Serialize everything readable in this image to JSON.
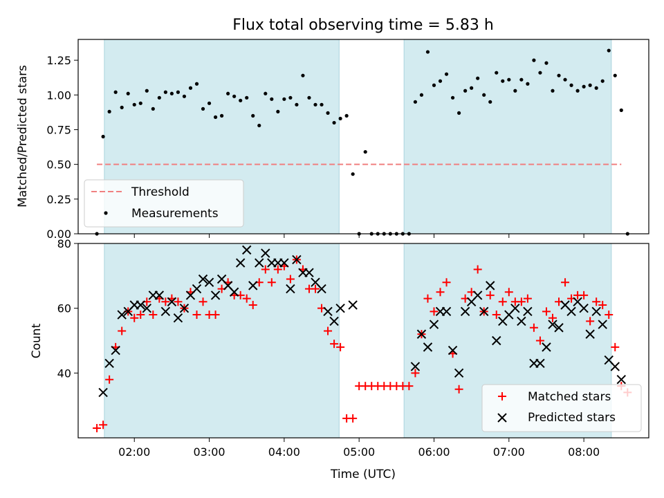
{
  "chart_data": [
    {
      "type": "scatter",
      "title": "Flux total observing time = 5.83 h",
      "xlabel": "",
      "ylabel": "Matched/Predicted stars",
      "xlim": [
        "01:15",
        "08:52"
      ],
      "ylim": [
        0,
        1.4
      ],
      "yticks": [
        "0.00",
        "0.25",
        "0.50",
        "0.75",
        "1.00",
        "1.25"
      ],
      "shaded_regions": [
        [
          "01:36",
          "04:44"
        ],
        [
          "05:36",
          "08:22"
        ]
      ],
      "legend": {
        "placement": "lower-left",
        "entries": [
          "Threshold",
          "Measurements"
        ]
      },
      "threshold": {
        "name": "Threshold",
        "value": 0.5,
        "x_range": [
          "01:30",
          "08:30"
        ],
        "color": "#f08080"
      },
      "series": [
        {
          "name": "Measurements",
          "color": "#000000",
          "points": [
            [
              "01:30",
              0.0
            ],
            [
              "01:35",
              0.7
            ],
            [
              "01:40",
              0.88
            ],
            [
              "01:45",
              1.02
            ],
            [
              "01:50",
              0.91
            ],
            [
              "01:55",
              1.01
            ],
            [
              "02:00",
              0.93
            ],
            [
              "02:05",
              0.94
            ],
            [
              "02:10",
              1.03
            ],
            [
              "02:15",
              0.9
            ],
            [
              "02:20",
              0.98
            ],
            [
              "02:25",
              1.02
            ],
            [
              "02:30",
              1.01
            ],
            [
              "02:35",
              1.02
            ],
            [
              "02:40",
              0.99
            ],
            [
              "02:45",
              1.05
            ],
            [
              "02:50",
              1.08
            ],
            [
              "02:55",
              0.9
            ],
            [
              "03:00",
              0.94
            ],
            [
              "03:05",
              0.84
            ],
            [
              "03:10",
              0.85
            ],
            [
              "03:15",
              1.01
            ],
            [
              "03:20",
              0.99
            ],
            [
              "03:25",
              0.96
            ],
            [
              "03:30",
              0.98
            ],
            [
              "03:35",
              0.85
            ],
            [
              "03:40",
              0.78
            ],
            [
              "03:45",
              1.01
            ],
            [
              "03:50",
              0.97
            ],
            [
              "03:55",
              0.88
            ],
            [
              "04:00",
              0.97
            ],
            [
              "04:05",
              0.98
            ],
            [
              "04:10",
              0.93
            ],
            [
              "04:15",
              1.14
            ],
            [
              "04:20",
              0.98
            ],
            [
              "04:25",
              0.93
            ],
            [
              "04:30",
              0.93
            ],
            [
              "04:35",
              0.87
            ],
            [
              "04:40",
              0.8
            ],
            [
              "04:45",
              0.83
            ],
            [
              "04:50",
              0.85
            ],
            [
              "04:55",
              0.43
            ],
            [
              "05:00",
              0.0
            ],
            [
              "05:05",
              0.59
            ],
            [
              "05:10",
              0.0
            ],
            [
              "05:15",
              0.0
            ],
            [
              "05:20",
              0.0
            ],
            [
              "05:25",
              0.0
            ],
            [
              "05:30",
              0.0
            ],
            [
              "05:35",
              0.0
            ],
            [
              "05:40",
              0.0
            ],
            [
              "05:45",
              0.95
            ],
            [
              "05:50",
              1.0
            ],
            [
              "05:55",
              1.31
            ],
            [
              "06:00",
              1.07
            ],
            [
              "06:05",
              1.1
            ],
            [
              "06:10",
              1.15
            ],
            [
              "06:15",
              0.98
            ],
            [
              "06:20",
              0.87
            ],
            [
              "06:25",
              1.03
            ],
            [
              "06:30",
              1.05
            ],
            [
              "06:35",
              1.12
            ],
            [
              "06:40",
              1.0
            ],
            [
              "06:45",
              0.95
            ],
            [
              "06:50",
              1.16
            ],
            [
              "06:55",
              1.1
            ],
            [
              "07:00",
              1.11
            ],
            [
              "07:05",
              1.03
            ],
            [
              "07:10",
              1.11
            ],
            [
              "07:15",
              1.08
            ],
            [
              "07:20",
              1.25
            ],
            [
              "07:25",
              1.16
            ],
            [
              "07:30",
              1.23
            ],
            [
              "07:35",
              1.03
            ],
            [
              "07:40",
              1.14
            ],
            [
              "07:45",
              1.11
            ],
            [
              "07:50",
              1.07
            ],
            [
              "07:55",
              1.03
            ],
            [
              "08:00",
              1.06
            ],
            [
              "08:05",
              1.07
            ],
            [
              "08:10",
              1.05
            ],
            [
              "08:15",
              1.1
            ],
            [
              "08:20",
              1.32
            ],
            [
              "08:25",
              1.14
            ],
            [
              "08:30",
              0.89
            ],
            [
              "08:35",
              0.0
            ]
          ]
        }
      ]
    },
    {
      "type": "scatter",
      "title": "",
      "xlabel": "Time (UTC)",
      "ylabel": "Count",
      "xlim": [
        "01:15",
        "08:52"
      ],
      "ylim": [
        20,
        80
      ],
      "yticks": [
        "40",
        "60",
        "80"
      ],
      "xticks": [
        "02:00",
        "03:00",
        "04:00",
        "05:00",
        "06:00",
        "07:00",
        "08:00"
      ],
      "shaded_regions": [
        [
          "01:36",
          "04:44"
        ],
        [
          "05:36",
          "08:22"
        ]
      ],
      "legend": {
        "placement": "lower-right",
        "entries": [
          "Matched stars",
          "Predicted stars"
        ]
      },
      "series": [
        {
          "name": "Matched stars",
          "marker": "plus",
          "color": "#ff0000",
          "points": [
            [
              "01:30",
              23
            ],
            [
              "01:35",
              24
            ],
            [
              "01:40",
              38
            ],
            [
              "01:45",
              48
            ],
            [
              "01:50",
              53
            ],
            [
              "01:55",
              59
            ],
            [
              "02:00",
              57
            ],
            [
              "02:05",
              58
            ],
            [
              "02:10",
              62
            ],
            [
              "02:15",
              58
            ],
            [
              "02:20",
              63
            ],
            [
              "02:25",
              62
            ],
            [
              "02:30",
              63
            ],
            [
              "02:35",
              62
            ],
            [
              "02:40",
              60
            ],
            [
              "02:45",
              65
            ],
            [
              "02:50",
              58
            ],
            [
              "02:55",
              62
            ],
            [
              "03:00",
              58
            ],
            [
              "03:05",
              58
            ],
            [
              "03:10",
              66
            ],
            [
              "03:15",
              68
            ],
            [
              "03:20",
              64
            ],
            [
              "03:25",
              64
            ],
            [
              "03:30",
              63
            ],
            [
              "03:35",
              61
            ],
            [
              "03:40",
              68
            ],
            [
              "03:45",
              72
            ],
            [
              "03:50",
              68
            ],
            [
              "03:55",
              72
            ],
            [
              "04:00",
              73
            ],
            [
              "04:05",
              69
            ],
            [
              "04:10",
              75
            ],
            [
              "04:15",
              72
            ],
            [
              "04:20",
              66
            ],
            [
              "04:25",
              66
            ],
            [
              "04:30",
              60
            ],
            [
              "04:35",
              53
            ],
            [
              "04:40",
              49
            ],
            [
              "04:45",
              48
            ],
            [
              "04:50",
              26
            ],
            [
              "04:55",
              26
            ],
            [
              "05:00",
              36
            ],
            [
              "05:05",
              36
            ],
            [
              "05:10",
              36
            ],
            [
              "05:15",
              36
            ],
            [
              "05:20",
              36
            ],
            [
              "05:25",
              36
            ],
            [
              "05:30",
              36
            ],
            [
              "05:35",
              36
            ],
            [
              "05:40",
              36
            ],
            [
              "05:45",
              40
            ],
            [
              "05:50",
              52
            ],
            [
              "05:55",
              63
            ],
            [
              "06:00",
              59
            ],
            [
              "06:05",
              65
            ],
            [
              "06:10",
              68
            ],
            [
              "06:15",
              46
            ],
            [
              "06:20",
              35
            ],
            [
              "06:25",
              63
            ],
            [
              "06:30",
              65
            ],
            [
              "06:35",
              72
            ],
            [
              "06:40",
              59
            ],
            [
              "06:45",
              64
            ],
            [
              "06:50",
              58
            ],
            [
              "06:55",
              62
            ],
            [
              "07:00",
              65
            ],
            [
              "07:05",
              62
            ],
            [
              "07:10",
              62
            ],
            [
              "07:15",
              63
            ],
            [
              "07:20",
              54
            ],
            [
              "07:25",
              50
            ],
            [
              "07:30",
              59
            ],
            [
              "07:35",
              57
            ],
            [
              "07:40",
              62
            ],
            [
              "07:45",
              68
            ],
            [
              "07:50",
              63
            ],
            [
              "07:55",
              64
            ],
            [
              "08:00",
              64
            ],
            [
              "08:05",
              56
            ],
            [
              "08:10",
              62
            ],
            [
              "08:15",
              61
            ],
            [
              "08:20",
              58
            ],
            [
              "08:25",
              48
            ],
            [
              "08:30",
              36
            ],
            [
              "08:35",
              34
            ]
          ]
        },
        {
          "name": "Predicted stars",
          "marker": "x",
          "color": "#000000",
          "points": [
            [
              "01:35",
              34
            ],
            [
              "01:40",
              43
            ],
            [
              "01:45",
              47
            ],
            [
              "01:50",
              58
            ],
            [
              "01:55",
              59
            ],
            [
              "02:00",
              61
            ],
            [
              "02:05",
              61
            ],
            [
              "02:10",
              60
            ],
            [
              "02:15",
              64
            ],
            [
              "02:20",
              64
            ],
            [
              "02:25",
              59
            ],
            [
              "02:30",
              62
            ],
            [
              "02:35",
              57
            ],
            [
              "02:40",
              60
            ],
            [
              "02:45",
              64
            ],
            [
              "02:50",
              66
            ],
            [
              "02:55",
              69
            ],
            [
              "03:00",
              68
            ],
            [
              "03:05",
              64
            ],
            [
              "03:10",
              69
            ],
            [
              "03:15",
              67
            ],
            [
              "03:20",
              65
            ],
            [
              "03:25",
              74
            ],
            [
              "03:30",
              78
            ],
            [
              "03:35",
              67
            ],
            [
              "03:40",
              74
            ],
            [
              "03:45",
              77
            ],
            [
              "03:50",
              74
            ],
            [
              "03:55",
              74
            ],
            [
              "04:00",
              74
            ],
            [
              "04:05",
              66
            ],
            [
              "04:10",
              75
            ],
            [
              "04:15",
              71
            ],
            [
              "04:20",
              71
            ],
            [
              "04:25",
              68
            ],
            [
              "04:30",
              66
            ],
            [
              "04:35",
              59
            ],
            [
              "04:40",
              56
            ],
            [
              "04:45",
              60
            ],
            [
              "04:55",
              61
            ],
            [
              "05:45",
              42
            ],
            [
              "05:50",
              52
            ],
            [
              "05:55",
              48
            ],
            [
              "06:00",
              55
            ],
            [
              "06:05",
              59
            ],
            [
              "06:10",
              59
            ],
            [
              "06:15",
              47
            ],
            [
              "06:20",
              40
            ],
            [
              "06:25",
              59
            ],
            [
              "06:30",
              62
            ],
            [
              "06:35",
              64
            ],
            [
              "06:40",
              59
            ],
            [
              "06:45",
              67
            ],
            [
              "06:50",
              50
            ],
            [
              "06:55",
              56
            ],
            [
              "07:00",
              58
            ],
            [
              "07:05",
              60
            ],
            [
              "07:10",
              56
            ],
            [
              "07:15",
              59
            ],
            [
              "07:20",
              43
            ],
            [
              "07:25",
              43
            ],
            [
              "07:30",
              48
            ],
            [
              "07:35",
              55
            ],
            [
              "07:40",
              54
            ],
            [
              "07:45",
              61
            ],
            [
              "07:50",
              59
            ],
            [
              "07:55",
              62
            ],
            [
              "08:00",
              60
            ],
            [
              "08:05",
              52
            ],
            [
              "08:10",
              59
            ],
            [
              "08:15",
              55
            ],
            [
              "08:20",
              44
            ],
            [
              "08:25",
              42
            ],
            [
              "08:30",
              38
            ]
          ]
        }
      ]
    }
  ],
  "colors": {
    "shade": "#d3ebf0",
    "shade_edge": "#a9d3dd",
    "threshold": "#f08080",
    "matched": "#ff0000",
    "predicted": "#000000"
  }
}
